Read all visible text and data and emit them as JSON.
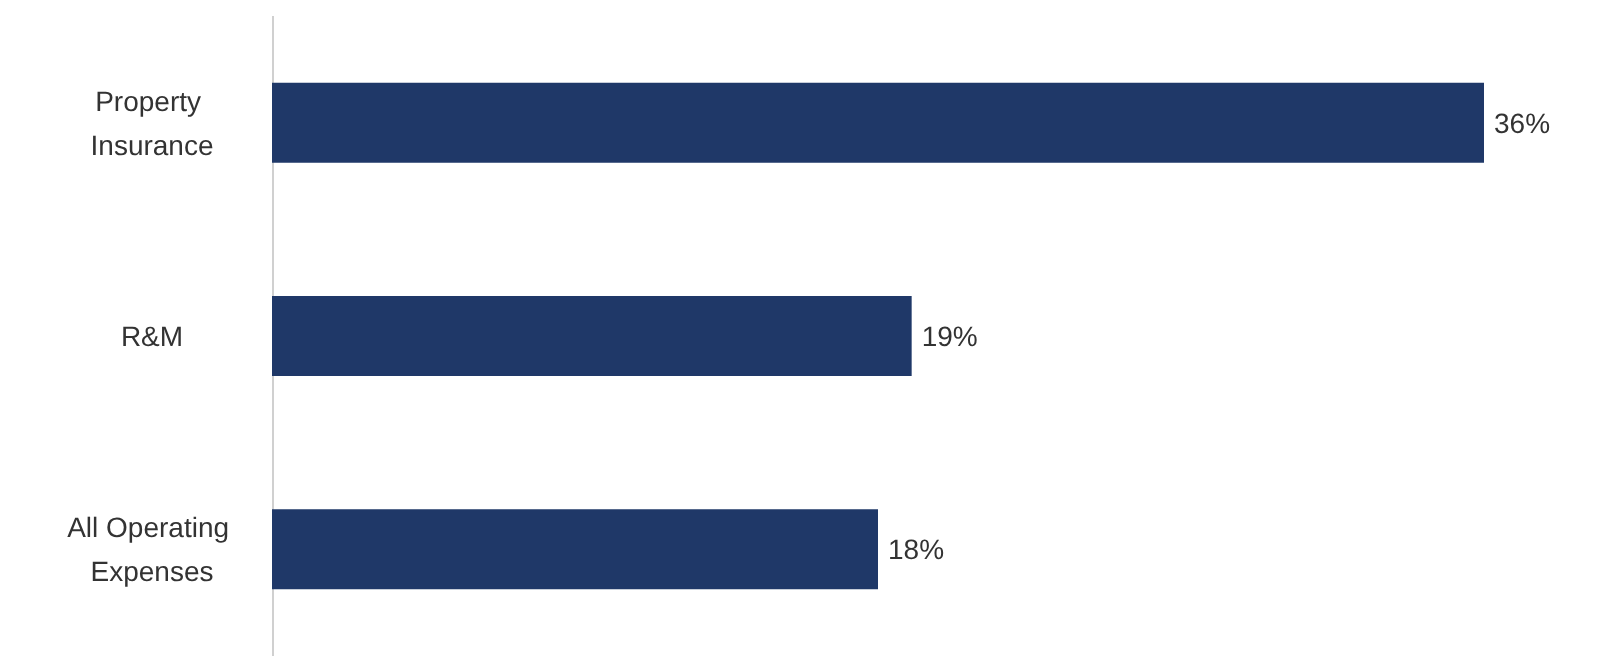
{
  "chart_data": {
    "type": "bar",
    "orientation": "horizontal",
    "categories": [
      "Property Insurance",
      "R&M",
      "All Operating Expenses"
    ],
    "values": [
      36,
      19,
      18
    ],
    "value_labels": [
      "36%",
      "19%",
      "18%"
    ],
    "color": "#1f3868"
  }
}
